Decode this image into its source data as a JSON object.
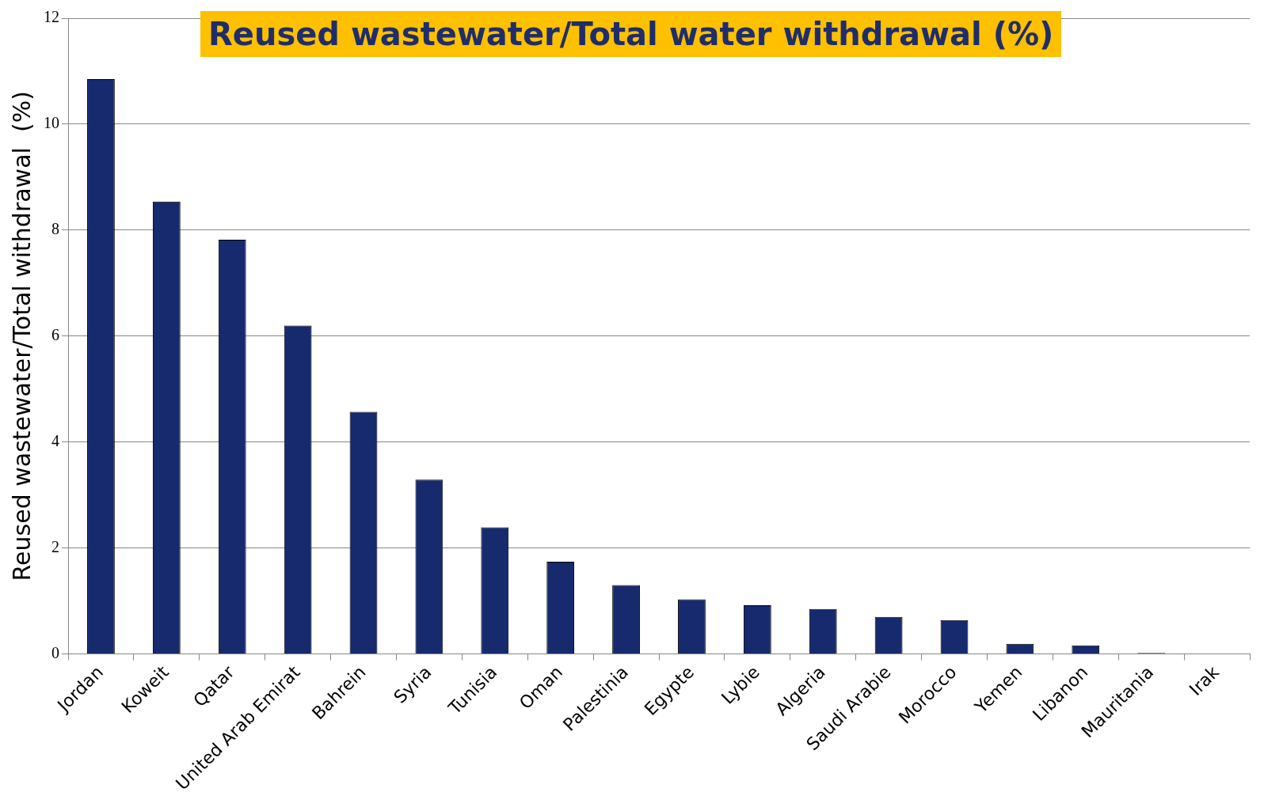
{
  "chart_data": {
    "type": "bar",
    "title": "Reused wastewater/Total water withdrawal  (%)",
    "ylabel": "Reused wastewater/Total withdrawal  (%)",
    "categories": [
      "Jordan",
      "Koweit",
      "Qatar",
      "United Arab Emirat",
      "Bahrein",
      "Syria",
      "Tunisia",
      "Oman",
      "Palestinia",
      "Egypte",
      "Lybie",
      "Algeria",
      "Saudi Arabie",
      "Morocco",
      "Yemen",
      "Libanon",
      "Mauritania",
      "Irak"
    ],
    "values": [
      10.85,
      8.54,
      7.82,
      6.2,
      4.57,
      3.29,
      2.39,
      1.74,
      1.3,
      1.03,
      0.92,
      0.85,
      0.7,
      0.64,
      0.19,
      0.16,
      0.02,
      0.01
    ],
    "color": "#172a6e",
    "ylim": [
      0,
      12
    ],
    "yticks": [
      0,
      2,
      4,
      6,
      8,
      10,
      12
    ],
    "grid": "y",
    "legend": false
  }
}
